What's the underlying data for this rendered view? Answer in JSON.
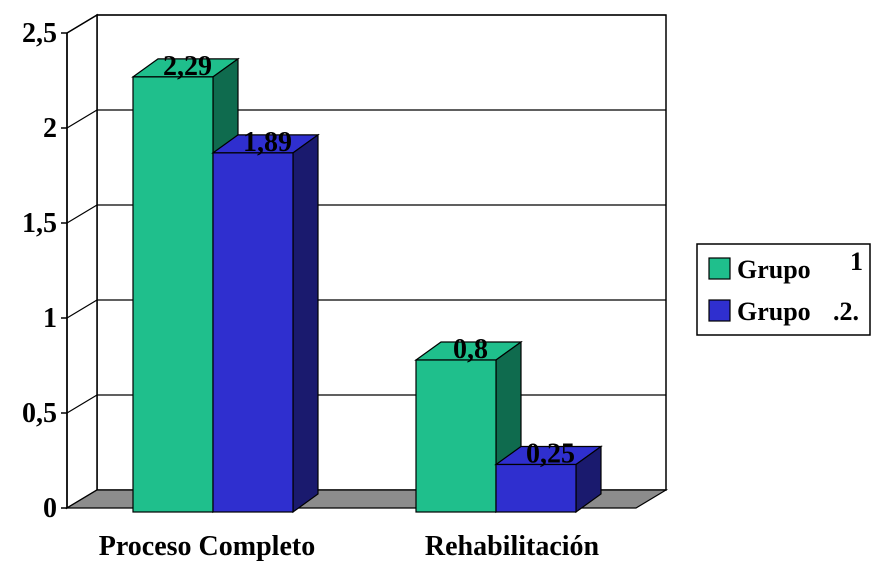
{
  "chart_data": {
    "type": "bar",
    "categories": [
      "Proceso Completo",
      "Rehabilitación"
    ],
    "series": [
      {
        "name": "Grupo 1",
        "values": [
          2.29,
          0.8
        ],
        "data_labels": [
          "2,29",
          "0,8"
        ],
        "color": "#1fbf8c",
        "side_color": "#0f6b4e"
      },
      {
        "name": "Grupo 2.",
        "values": [
          1.89,
          0.25
        ],
        "data_labels": [
          "1,89",
          "0,25"
        ],
        "color": "#2f2fcf",
        "side_color": "#1a1a6e"
      }
    ],
    "ylim": [
      0,
      2.5
    ],
    "yticks": [
      0,
      0.5,
      1,
      1.5,
      2,
      2.5
    ],
    "ytick_labels": [
      "0",
      "0,5",
      "1",
      "1,5",
      "2",
      "2,5"
    ],
    "legend": {
      "position": "right",
      "entries": [
        {
          "label": "Grupo",
          "suffix": "1"
        },
        {
          "label": "Grupo",
          "suffix": ".2."
        }
      ]
    },
    "grid": true,
    "style": "3d-column"
  }
}
